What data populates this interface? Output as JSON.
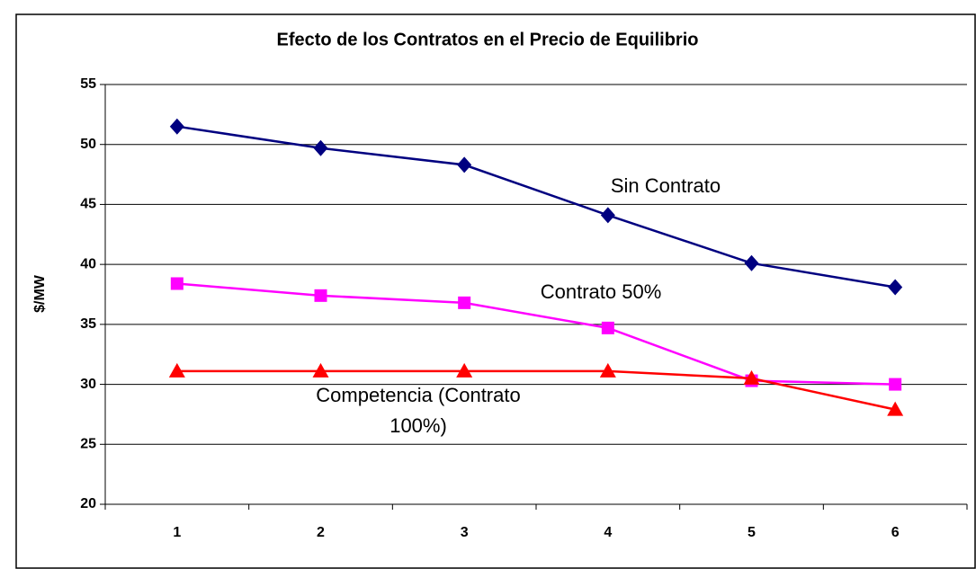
{
  "chart_data": {
    "type": "line",
    "title": "Efecto de los Contratos en el Precio de Equilibrio",
    "y_label": "$/MW",
    "categories": [
      "1",
      "2",
      "3",
      "4",
      "5",
      "6"
    ],
    "series": [
      {
        "color": "#000080",
        "marker": "diamond",
        "values": [
          51.5,
          49.7,
          48.3,
          44.1,
          40.1,
          38.1
        ]
      },
      {
        "color": "#ff00ff",
        "marker": "square",
        "values": [
          38.4,
          37.4,
          36.8,
          34.7,
          30.3,
          30.0
        ]
      },
      {
        "color": "#ff0000",
        "marker": "triangle",
        "values": [
          31.1,
          31.1,
          31.1,
          31.1,
          30.5,
          27.9
        ]
      }
    ],
    "annotations": [
      {
        "lines": [
          "Sin Contrato"
        ]
      },
      {
        "lines": [
          "Contrato 50%"
        ]
      },
      {
        "lines": [
          "Competencia (Contrato",
          "100%)"
        ]
      }
    ],
    "ylim": [
      20,
      55
    ],
    "yticks": [
      20,
      25,
      30,
      35,
      40,
      45,
      50,
      55
    ],
    "grid": true
  }
}
